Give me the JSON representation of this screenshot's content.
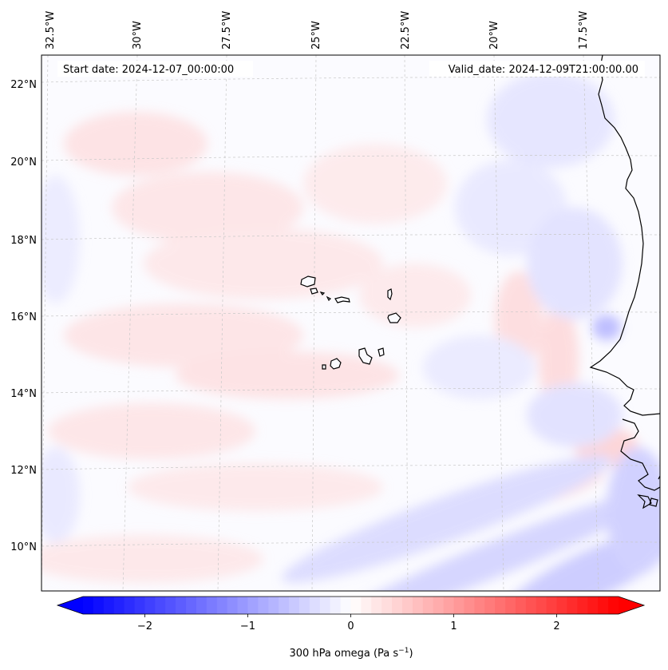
{
  "map": {
    "start_date": "Start date: 2024-12-07_00:00:00",
    "valid_date": "Valid_date: 2024-12-09T21:00:00.00",
    "lon_labels": [
      "32.5°W",
      "30°W",
      "27.5°W",
      "25°W",
      "22.5°W",
      "20°W",
      "17.5°W"
    ],
    "lat_labels": [
      "22°N",
      "20°N",
      "18°N",
      "16°N",
      "14°N",
      "12°N",
      "10°N"
    ],
    "colormap": [
      "#0000ff",
      "#ffffff",
      "#ff0000"
    ]
  },
  "colorbar": {
    "label": "300 hPa omega (Pa s",
    "label_sup": "−1",
    "label_close": ")",
    "range": [
      -2.6,
      2.6
    ],
    "ticks": [
      {
        "value": -2,
        "label": "−2"
      },
      {
        "value": -1,
        "label": "−1"
      },
      {
        "value": 0,
        "label": "0"
      },
      {
        "value": 1,
        "label": "1"
      },
      {
        "value": 2,
        "label": "2"
      }
    ]
  }
}
